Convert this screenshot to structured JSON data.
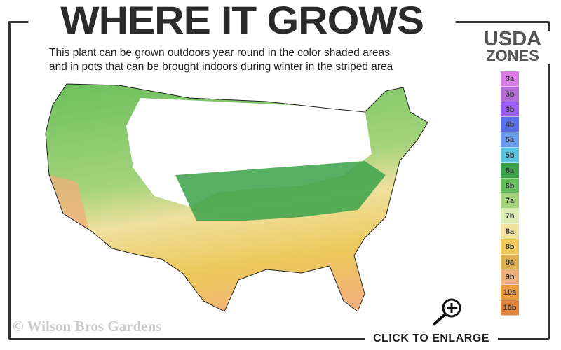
{
  "header": {
    "title": "WHERE IT GROWS",
    "subtitle_line1": "This plant can be grown outdoors year round in the color shaded areas",
    "subtitle_line2": "and in pots that can be brought indoors during winter in the striped area"
  },
  "legend": {
    "title_line1": "USDA",
    "title_line2": "ZONES",
    "zones": [
      {
        "label": "3a",
        "color": "#d67fe0"
      },
      {
        "label": "3b",
        "color": "#b56ed8"
      },
      {
        "label": "3b",
        "color": "#9a5ef0"
      },
      {
        "label": "4b",
        "color": "#5a6fe6"
      },
      {
        "label": "5a",
        "color": "#6b9cf0"
      },
      {
        "label": "5b",
        "color": "#5cc4dc"
      },
      {
        "label": "6a",
        "color": "#3ba24a"
      },
      {
        "label": "6b",
        "color": "#64bd5a"
      },
      {
        "label": "7a",
        "color": "#a4d37c"
      },
      {
        "label": "7b",
        "color": "#dcebb4"
      },
      {
        "label": "8a",
        "color": "#efe0a0"
      },
      {
        "label": "8b",
        "color": "#ecc95a"
      },
      {
        "label": "9a",
        "color": "#dbb154"
      },
      {
        "label": "9b",
        "color": "#f0b07c"
      },
      {
        "label": "10a",
        "color": "#ec9a3e"
      },
      {
        "label": "10b",
        "color": "#e4843a"
      }
    ]
  },
  "footer": {
    "copyright": "© Wilson Bros Gardens",
    "enlarge_label": "CLICK TO ENLARGE"
  },
  "icons": {
    "enlarge": "magnifier-plus-icon"
  }
}
